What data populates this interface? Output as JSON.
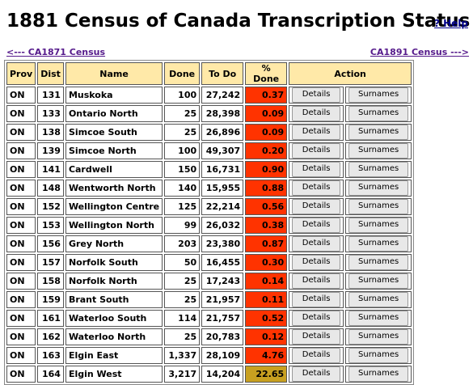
{
  "page": {
    "title": "1881 Census of Canada Transcription Status",
    "help_label": "? Help",
    "prev_link": "<--- CA1871 Census",
    "next_link": "CA1891 Census --->"
  },
  "table": {
    "headers": [
      "Prov",
      "Dist",
      "Name",
      "Done",
      "To Do",
      "% Done",
      "Action"
    ],
    "details_label": "Details",
    "surnames_label": "Surnames",
    "rows": [
      {
        "prov": "ON",
        "dist": "131",
        "name": "Muskoka",
        "done": "100",
        "todo": "27,242",
        "pct": "0.37",
        "color": "#ff3300"
      },
      {
        "prov": "ON",
        "dist": "133",
        "name": "Ontario North",
        "done": "25",
        "todo": "28,398",
        "pct": "0.09",
        "color": "#ff3300"
      },
      {
        "prov": "ON",
        "dist": "138",
        "name": "Simcoe South",
        "done": "25",
        "todo": "26,896",
        "pct": "0.09",
        "color": "#ff3300"
      },
      {
        "prov": "ON",
        "dist": "139",
        "name": "Simcoe North",
        "done": "100",
        "todo": "49,307",
        "pct": "0.20",
        "color": "#ff3300"
      },
      {
        "prov": "ON",
        "dist": "141",
        "name": "Cardwell",
        "done": "150",
        "todo": "16,731",
        "pct": "0.90",
        "color": "#ff3300"
      },
      {
        "prov": "ON",
        "dist": "148",
        "name": "Wentworth North",
        "done": "140",
        "todo": "15,955",
        "pct": "0.88",
        "color": "#ff3300"
      },
      {
        "prov": "ON",
        "dist": "152",
        "name": "Wellington Centre",
        "done": "125",
        "todo": "22,214",
        "pct": "0.56",
        "color": "#ff3300"
      },
      {
        "prov": "ON",
        "dist": "153",
        "name": "Wellington North",
        "done": "99",
        "todo": "26,032",
        "pct": "0.38",
        "color": "#ff3300"
      },
      {
        "prov": "ON",
        "dist": "156",
        "name": "Grey North",
        "done": "203",
        "todo": "23,380",
        "pct": "0.87",
        "color": "#ff3300"
      },
      {
        "prov": "ON",
        "dist": "157",
        "name": "Norfolk South",
        "done": "50",
        "todo": "16,455",
        "pct": "0.30",
        "color": "#ff3300"
      },
      {
        "prov": "ON",
        "dist": "158",
        "name": "Norfolk North",
        "done": "25",
        "todo": "17,243",
        "pct": "0.14",
        "color": "#ff3300"
      },
      {
        "prov": "ON",
        "dist": "159",
        "name": "Brant South",
        "done": "25",
        "todo": "21,957",
        "pct": "0.11",
        "color": "#ff3300"
      },
      {
        "prov": "ON",
        "dist": "161",
        "name": "Waterloo South",
        "done": "114",
        "todo": "21,757",
        "pct": "0.52",
        "color": "#ff3300"
      },
      {
        "prov": "ON",
        "dist": "162",
        "name": "Waterloo North",
        "done": "25",
        "todo": "20,783",
        "pct": "0.12",
        "color": "#ff3300"
      },
      {
        "prov": "ON",
        "dist": "163",
        "name": "Elgin East",
        "done": "1,337",
        "todo": "28,109",
        "pct": "4.76",
        "color": "#ff3300"
      },
      {
        "prov": "ON",
        "dist": "164",
        "name": "Elgin West",
        "done": "3,217",
        "todo": "14,204",
        "pct": "22.65",
        "color": "#c8a020"
      }
    ]
  }
}
